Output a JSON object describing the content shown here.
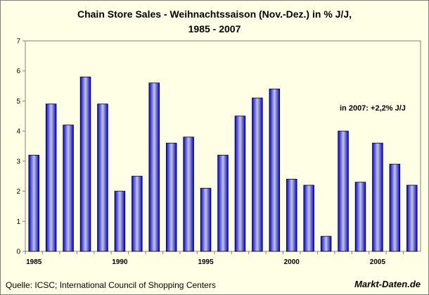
{
  "chart_data": {
    "type": "bar",
    "title_line1": "Chain Store Sales - Weihnachtssaison (Nov.-Dez.) in % J/J,",
    "title_line2": "1985 - 2007",
    "xlabel": "",
    "ylabel": "",
    "ylim": [
      0,
      7
    ],
    "yticks": [
      "0",
      "1",
      "2",
      "3",
      "4",
      "5",
      "6",
      "7"
    ],
    "xtick_labels": [
      {
        "year": 1985,
        "label": "1985"
      },
      {
        "year": 1990,
        "label": "1990"
      },
      {
        "year": 1995,
        "label": "1995"
      },
      {
        "year": 2000,
        "label": "2000"
      },
      {
        "year": 2005,
        "label": "2005"
      }
    ],
    "categories": [
      1985,
      1986,
      1987,
      1988,
      1989,
      1990,
      1991,
      1992,
      1993,
      1994,
      1995,
      1996,
      1997,
      1998,
      1999,
      2000,
      2001,
      2002,
      2003,
      2004,
      2005,
      2006,
      2007
    ],
    "values": [
      3.2,
      4.9,
      4.2,
      5.8,
      4.9,
      2.0,
      2.5,
      5.6,
      3.6,
      3.8,
      2.1,
      3.2,
      4.5,
      5.1,
      5.4,
      2.4,
      2.2,
      0.5,
      4.0,
      2.3,
      3.6,
      2.9,
      2.2
    ],
    "annotation": "in 2007: +2,2% J/J",
    "grid": false,
    "colors": {
      "bar_edge": "#0000ff",
      "bar_center": "#c8c8c8",
      "plot_background": "#ffffe6",
      "axis": "#808080"
    }
  },
  "footer": {
    "source": "Quelle: ICSC; International Council of Shopping Centers",
    "brand": "Markt-Daten.de"
  }
}
